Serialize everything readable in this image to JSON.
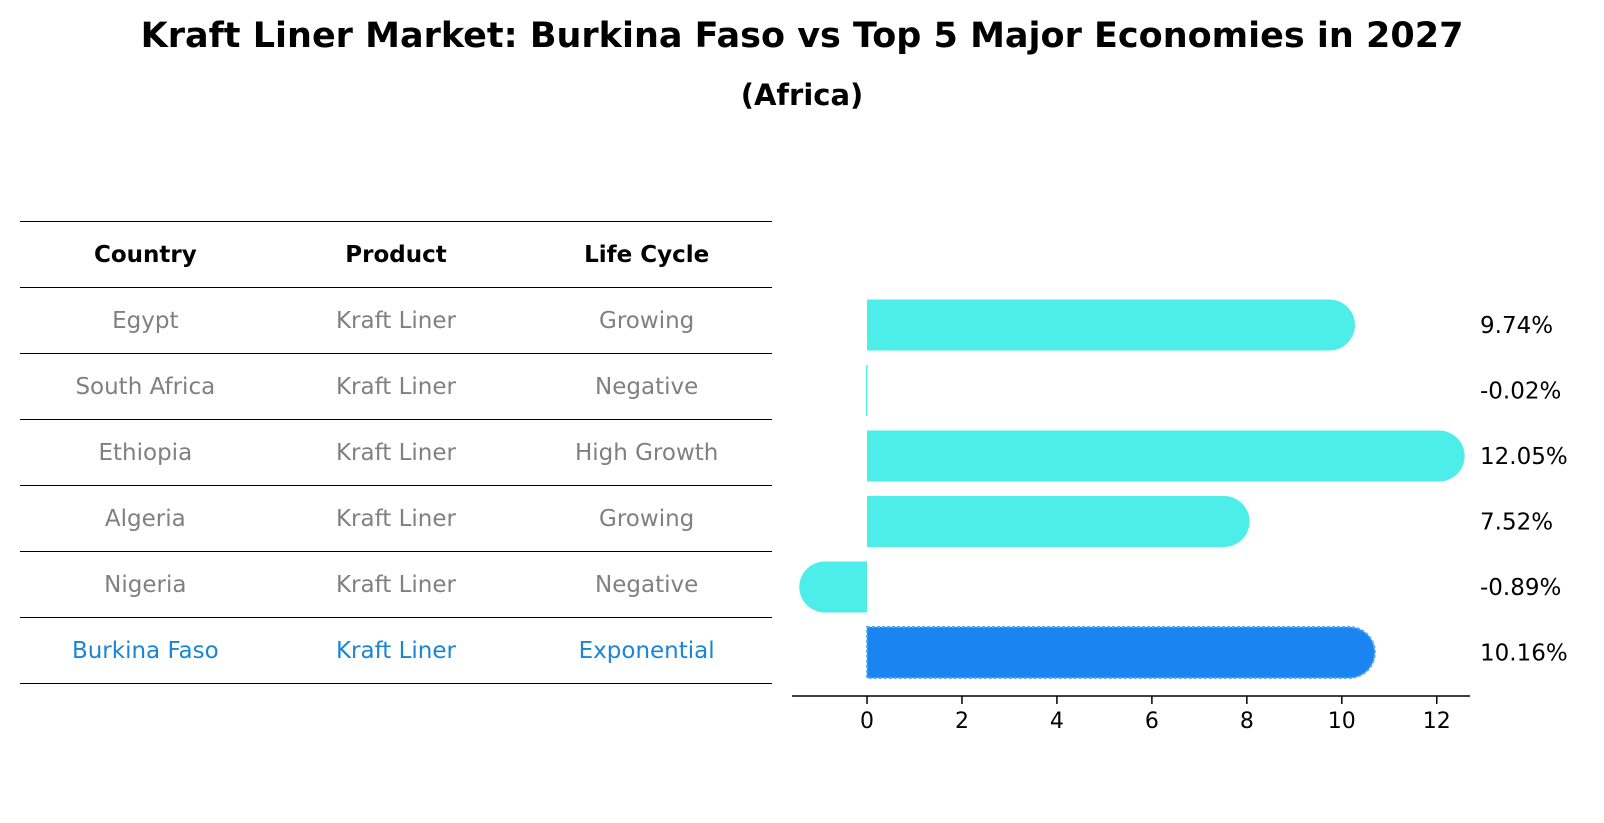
{
  "title": "Kraft Liner Market: Burkina Faso vs Top 5 Major Economies in 2027",
  "subtitle": "(Africa)",
  "table": {
    "headers": [
      "Country",
      "Product",
      "Life Cycle"
    ],
    "rows": [
      {
        "country": "Egypt",
        "product": "Kraft Liner",
        "life_cycle": "Growing"
      },
      {
        "country": "South Africa",
        "product": "Kraft Liner",
        "life_cycle": "Negative"
      },
      {
        "country": "Ethiopia",
        "product": "Kraft Liner",
        "life_cycle": "High Growth"
      },
      {
        "country": "Algeria",
        "product": "Kraft Liner",
        "life_cycle": "Growing"
      },
      {
        "country": "Nigeria",
        "product": "Kraft Liner",
        "life_cycle": "Negative"
      },
      {
        "country": "Burkina Faso",
        "product": "Kraft Liner",
        "life_cycle": "Exponential"
      }
    ]
  },
  "chart_data": {
    "type": "bar",
    "orientation": "horizontal",
    "categories": [
      "Egypt",
      "South Africa",
      "Ethiopia",
      "Algeria",
      "Nigeria",
      "Burkina Faso"
    ],
    "values": [
      9.74,
      -0.02,
      12.05,
      7.52,
      -0.89,
      10.16
    ],
    "value_labels": [
      "9.74%",
      "-0.02%",
      "12.05%",
      "7.52%",
      "-0.89%",
      "10.16%"
    ],
    "highlight_index": 5,
    "xlim": [
      -1.58,
      12.7
    ],
    "xticks": [
      0,
      2,
      4,
      6,
      8,
      10,
      12
    ],
    "xtick_labels": [
      "0",
      "2",
      "4",
      "6",
      "8",
      "10",
      "12"
    ],
    "xlabel": "",
    "ylabel": "",
    "grid": false,
    "colors": {
      "bar": "#4deeea",
      "highlight": "#1a85f0",
      "text": "#000000"
    }
  }
}
